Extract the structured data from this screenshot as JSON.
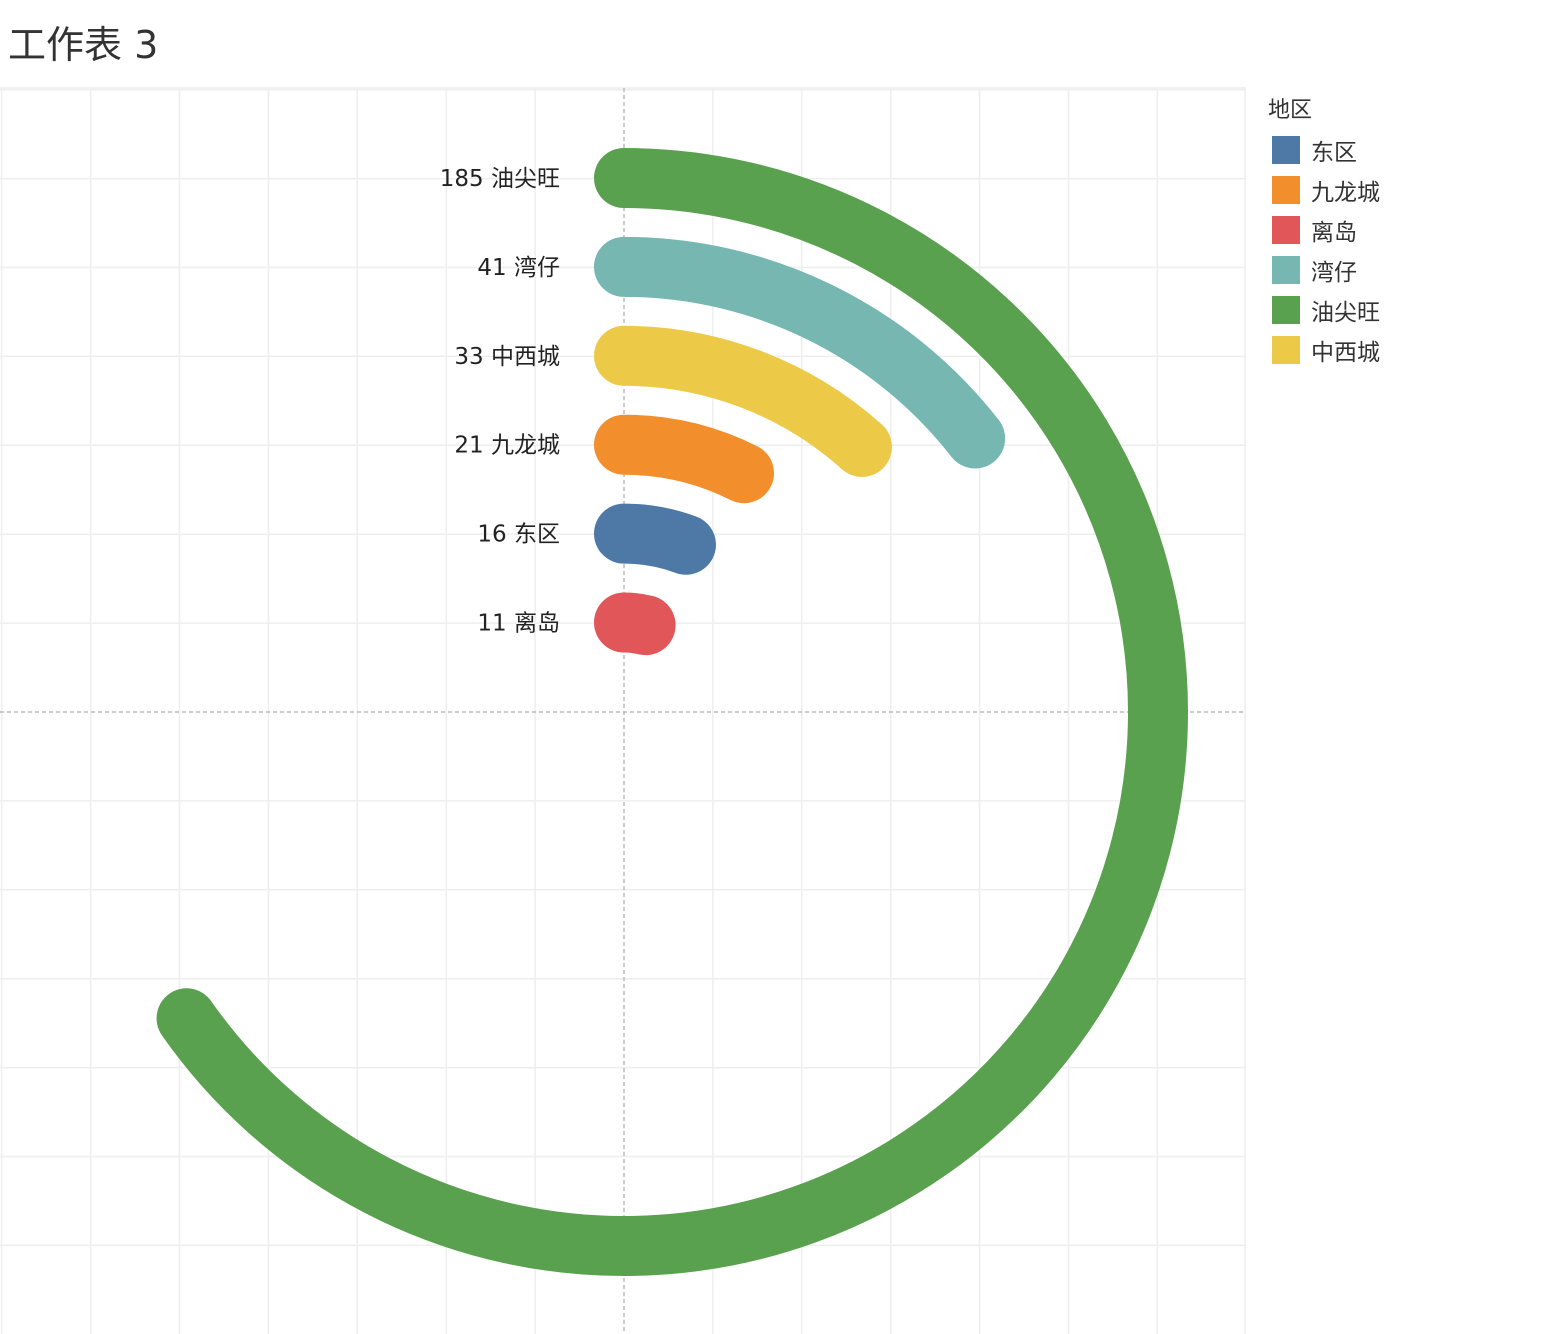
{
  "title": "工作表 3",
  "legend": {
    "title": "地区",
    "items": [
      {
        "label": "东区",
        "color": "#4e79a7"
      },
      {
        "label": "九龙城",
        "color": "#f28e2b"
      },
      {
        "label": "离岛",
        "color": "#e15759"
      },
      {
        "label": "湾仔",
        "color": "#76b7b2"
      },
      {
        "label": "油尖旺",
        "color": "#59a14f"
      },
      {
        "label": "中西城",
        "color": "#edc948"
      }
    ]
  },
  "chart_data": {
    "type": "radial-bar",
    "title": "工作表 3",
    "legend_title": "地区",
    "legend_placement": "right",
    "grid": true,
    "max_value": 185,
    "max_sweep_degrees": 235,
    "series": [
      {
        "name": "油尖旺",
        "value": 185,
        "label": "185 油尖旺",
        "color": "#59a14f"
      },
      {
        "name": "湾仔",
        "value": 41,
        "label": "41 湾仔",
        "color": "#76b7b2"
      },
      {
        "name": "中西城",
        "value": 33,
        "label": "33 中西城",
        "color": "#edc948"
      },
      {
        "name": "九龙城",
        "value": 21,
        "label": "21 九龙城",
        "color": "#f28e2b"
      },
      {
        "name": "东区",
        "value": 16,
        "label": "16 东区",
        "color": "#4e79a7"
      },
      {
        "name": "离岛",
        "value": 11,
        "label": "11 离岛",
        "color": "#e15759"
      }
    ]
  }
}
